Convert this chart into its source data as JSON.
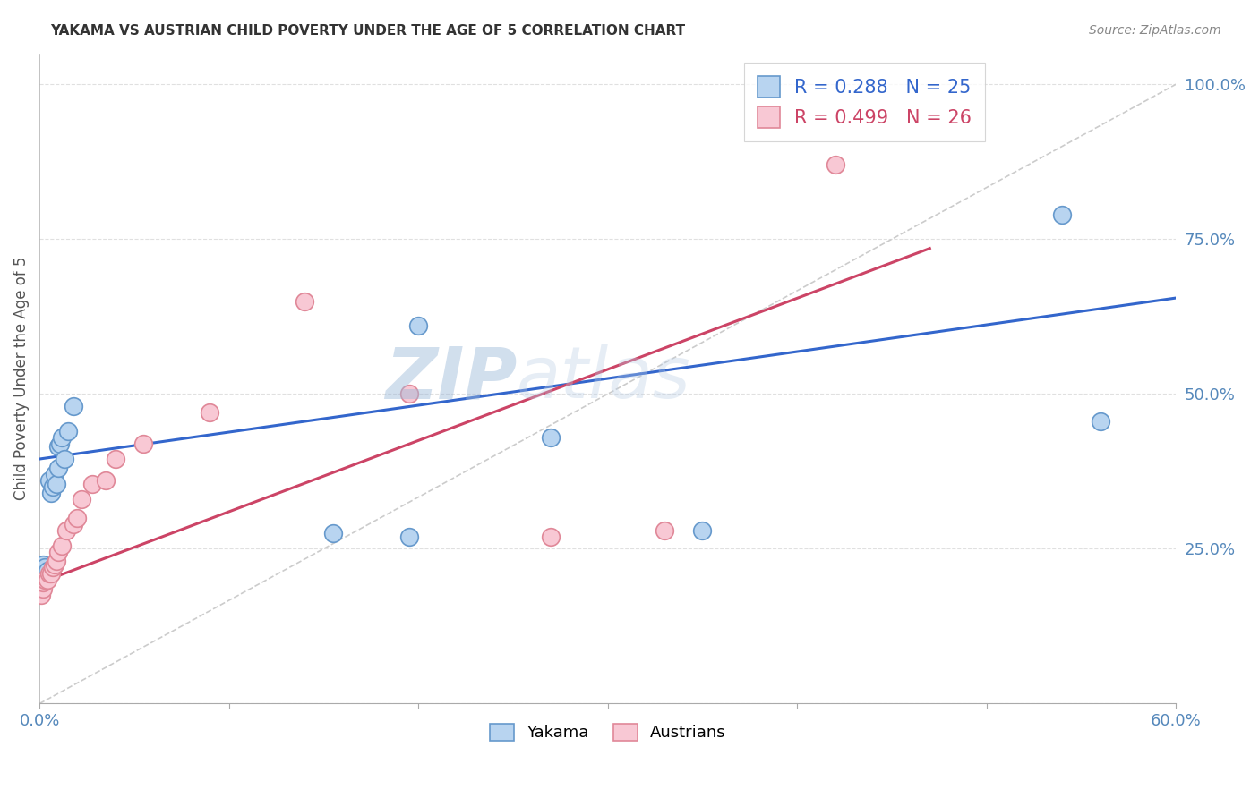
{
  "title": "YAKAMA VS AUSTRIAN CHILD POVERTY UNDER THE AGE OF 5 CORRELATION CHART",
  "source": "Source: ZipAtlas.com",
  "ylabel": "Child Poverty Under the Age of 5",
  "watermark": "ZIPatlas",
  "xlim": [
    0.0,
    0.6
  ],
  "ylim": [
    0.0,
    1.05
  ],
  "xticks": [
    0.0,
    0.1,
    0.2,
    0.3,
    0.4,
    0.5,
    0.6
  ],
  "xticklabels": [
    "0.0%",
    "",
    "",
    "",
    "",
    "",
    "60.0%"
  ],
  "yticks_right": [
    0.25,
    0.5,
    0.75,
    1.0
  ],
  "yticklabels_right": [
    "25.0%",
    "50.0%",
    "75.0%",
    "100.0%"
  ],
  "yakama_color": "#b8d4f0",
  "yakama_edge": "#6699cc",
  "austrian_color": "#f8c8d4",
  "austrian_edge": "#e08898",
  "blue_line_color": "#3366cc",
  "pink_line_color": "#cc4466",
  "ref_line_color": "#cccccc",
  "legend_r1": "R = 0.288   N = 25",
  "legend_r2": "R = 0.499   N = 26",
  "yakama_x": [
    0.001,
    0.001,
    0.002,
    0.002,
    0.003,
    0.004,
    0.005,
    0.006,
    0.007,
    0.008,
    0.009,
    0.01,
    0.01,
    0.011,
    0.012,
    0.013,
    0.015,
    0.018,
    0.155,
    0.195,
    0.2,
    0.27,
    0.35,
    0.54,
    0.56
  ],
  "yakama_y": [
    0.215,
    0.22,
    0.21,
    0.225,
    0.22,
    0.215,
    0.36,
    0.34,
    0.35,
    0.37,
    0.355,
    0.38,
    0.415,
    0.42,
    0.43,
    0.395,
    0.44,
    0.48,
    0.275,
    0.27,
    0.61,
    0.43,
    0.28,
    0.79,
    0.455
  ],
  "austrian_x": [
    0.001,
    0.002,
    0.002,
    0.003,
    0.004,
    0.005,
    0.006,
    0.007,
    0.008,
    0.009,
    0.01,
    0.012,
    0.014,
    0.018,
    0.02,
    0.022,
    0.028,
    0.035,
    0.04,
    0.055,
    0.09,
    0.14,
    0.195,
    0.27,
    0.33,
    0.42
  ],
  "austrian_y": [
    0.175,
    0.185,
    0.195,
    0.2,
    0.2,
    0.21,
    0.21,
    0.22,
    0.225,
    0.23,
    0.245,
    0.255,
    0.28,
    0.29,
    0.3,
    0.33,
    0.355,
    0.36,
    0.395,
    0.42,
    0.47,
    0.65,
    0.5,
    0.27,
    0.28,
    0.87
  ],
  "blue_line_x": [
    0.0,
    0.6
  ],
  "blue_line_y": [
    0.395,
    0.655
  ],
  "pink_line_x": [
    0.0,
    0.47
  ],
  "pink_line_y": [
    0.195,
    0.735
  ],
  "ref_line_x": [
    0.0,
    0.6
  ],
  "ref_line_y": [
    0.0,
    1.0
  ]
}
